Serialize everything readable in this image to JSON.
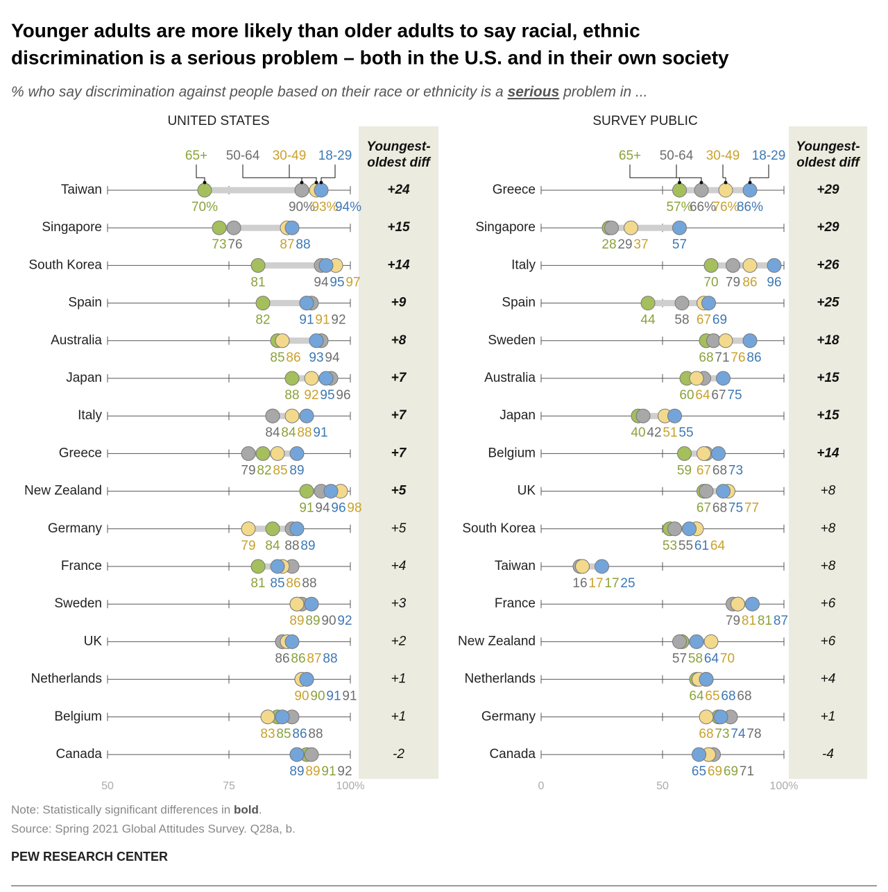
{
  "title": [
    "Younger adults are more likely than older adults to say racial, ethnic",
    "discrimination is a serious problem – both in the U.S. and in their own society"
  ],
  "subtitle": [
    "% who say discrimination against people based on their race or ethnicity is a ",
    "serious",
    " problem in ..."
  ],
  "note": [
    "Note: Statistically significant differences in ",
    "bold",
    "."
  ],
  "source": "Source: Spring 2021 Global Attitudes Survey. Q28a, b.",
  "footer": "PEW RESEARCH CENTER",
  "chart_data": [
    {
      "type": "dot",
      "title": "UNITED STATES",
      "diff_title": [
        "Youngest-",
        "oldest diff"
      ],
      "categories": [
        "Taiwan",
        "Singapore",
        "South Korea",
        "Spain",
        "Australia",
        "Japan",
        "Italy",
        "Greece",
        "New Zealand",
        "Germany",
        "France",
        "Sweden",
        "UK",
        "Netherlands",
        "Belgium",
        "Canada"
      ],
      "series": [
        {
          "name": "18-29",
          "color": "#73a5da",
          "label_color": "#3d78b4",
          "values": [
            94,
            88,
            95,
            91,
            93,
            95,
            91,
            89,
            96,
            89,
            85,
            92,
            88,
            91,
            86,
            89
          ],
          "value_labels": [
            "94%",
            "88",
            "95",
            "91",
            "93",
            "95",
            "91",
            "89",
            "96",
            "89",
            "85",
            "92",
            "88",
            "91",
            "86",
            "89"
          ]
        },
        {
          "name": "30-49",
          "color": "#f3d98c",
          "label_color": "#c9a12c",
          "values": [
            93,
            87,
            97,
            91,
            86,
            92,
            88,
            85,
            98,
            79,
            86,
            89,
            87,
            90,
            83,
            89
          ],
          "value_labels": [
            "93%",
            "87",
            "97",
            "91",
            "86",
            "92",
            "88",
            "85",
            "98",
            "79",
            "86",
            "89",
            "87",
            "90",
            "83",
            "89"
          ]
        },
        {
          "name": "50-64",
          "color": "#a8a8a8",
          "label_color": "#6e6e6e",
          "values": [
            90,
            76,
            94,
            92,
            94,
            96,
            84,
            79,
            94,
            88,
            88,
            90,
            86,
            91,
            88,
            92
          ],
          "value_labels": [
            "90%",
            "76",
            "94",
            "92",
            "94",
            "96",
            "84",
            "79",
            "94",
            "88",
            "88",
            "90",
            "86",
            "91",
            "88",
            "92"
          ]
        },
        {
          "name": "65+",
          "color": "#a4bf5c",
          "label_color": "#8aa23c",
          "values": [
            70,
            73,
            81,
            82,
            85,
            88,
            84,
            82,
            91,
            84,
            81,
            89,
            86,
            90,
            85,
            91
          ],
          "value_labels": [
            "70%",
            "73",
            "81",
            "82",
            "85",
            "88",
            "84",
            "82",
            "91",
            "84",
            "81",
            "89",
            "86",
            "90",
            "85",
            "91"
          ]
        }
      ],
      "diff_labels": [
        "+24",
        "+15",
        "+14",
        "+9",
        "+8",
        "+7",
        "+7",
        "+7",
        "+5",
        "+5",
        "+4",
        "+3",
        "+2",
        "+1",
        "+1",
        "-2"
      ],
      "significant": [
        true,
        true,
        true,
        true,
        true,
        true,
        true,
        true,
        true,
        false,
        false,
        false,
        false,
        false,
        false,
        false
      ],
      "xlim": [
        50,
        100
      ],
      "xticks": [
        50,
        75,
        {
          "value": 100,
          "label": "100%"
        }
      ]
    },
    {
      "type": "dot",
      "title": "SURVEY PUBLIC",
      "diff_title": [
        "Youngest-",
        "oldest diff"
      ],
      "categories": [
        "Greece",
        "Singapore",
        "Italy",
        "Spain",
        "Sweden",
        "Australia",
        "Japan",
        "Belgium",
        "UK",
        "South Korea",
        "Taiwan",
        "France",
        "New Zealand",
        "Netherlands",
        "Germany",
        "Canada"
      ],
      "series": [
        {
          "name": "18-29",
          "color": "#73a5da",
          "label_color": "#3d78b4",
          "values": [
            86,
            57,
            96,
            69,
            86,
            75,
            55,
            73,
            75,
            61,
            25,
            87,
            64,
            68,
            74,
            65
          ],
          "value_labels": [
            "86%",
            "57",
            "96",
            "69",
            "86",
            "75",
            "55",
            "73",
            "75",
            "61",
            "25",
            "87",
            "64",
            "68",
            "74",
            "65"
          ]
        },
        {
          "name": "30-49",
          "color": "#f3d98c",
          "label_color": "#c9a12c",
          "values": [
            76,
            37,
            86,
            67,
            76,
            64,
            51,
            67,
            77,
            64,
            17,
            81,
            70,
            65,
            68,
            69
          ],
          "value_labels": [
            "76%",
            "37",
            "86",
            "67",
            "76",
            "64",
            "51",
            "67",
            "77",
            "64",
            "17",
            "81",
            "70",
            "65",
            "68",
            "69"
          ]
        },
        {
          "name": "50-64",
          "color": "#a8a8a8",
          "label_color": "#6e6e6e",
          "values": [
            66,
            29,
            79,
            58,
            71,
            67,
            42,
            68,
            68,
            55,
            16,
            79,
            57,
            68,
            78,
            71
          ],
          "value_labels": [
            "66%",
            "29",
            "79",
            "58",
            "71",
            "67",
            "42",
            "68",
            "68",
            "55",
            "16",
            "79",
            "57",
            "68",
            "78",
            "71"
          ]
        },
        {
          "name": "65+",
          "color": "#a4bf5c",
          "label_color": "#8aa23c",
          "values": [
            57,
            28,
            70,
            44,
            68,
            60,
            40,
            59,
            67,
            53,
            17,
            81,
            58,
            64,
            73,
            69
          ],
          "value_labels": [
            "57%",
            "28",
            "70",
            "44",
            "68",
            "60",
            "40",
            "59",
            "67",
            "53",
            "17",
            "81",
            "58",
            "64",
            "73",
            "69"
          ]
        }
      ],
      "diff_labels": [
        "+29",
        "+29",
        "+26",
        "+25",
        "+18",
        "+15",
        "+15",
        "+14",
        "+8",
        "+8",
        "+8",
        "+6",
        "+6",
        "+4",
        "+1",
        "-4"
      ],
      "significant": [
        true,
        true,
        true,
        true,
        true,
        true,
        true,
        true,
        false,
        false,
        false,
        false,
        false,
        false,
        false,
        false
      ],
      "xlim": [
        0,
        100
      ],
      "xticks": [
        0,
        50,
        {
          "value": 100,
          "label": "100%"
        }
      ]
    }
  ]
}
